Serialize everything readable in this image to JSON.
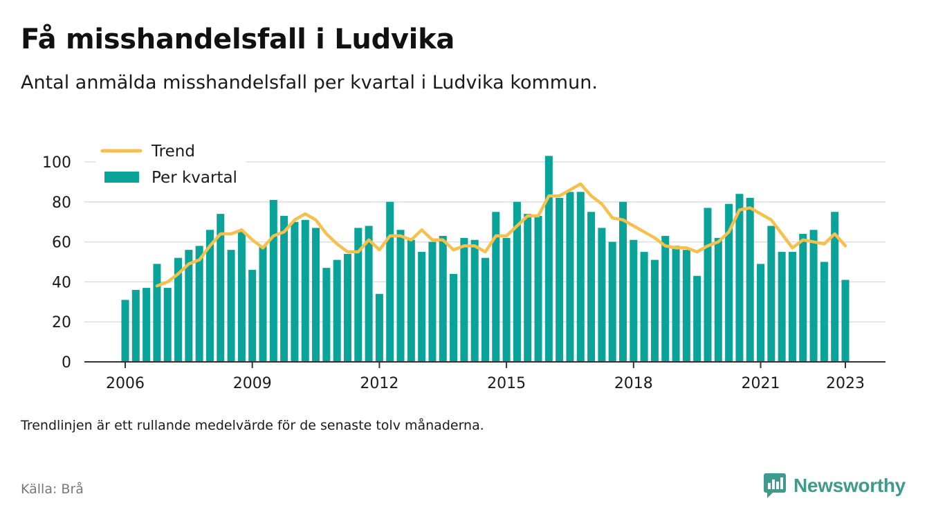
{
  "header": {
    "title": "Få misshandelsfall i Ludvika",
    "subtitle": "Antal anmälda misshandelsfall per kvartal i Ludvika kommun."
  },
  "footer": {
    "note": "Trendlinjen är ett rullande medelvärde för de senaste tolv månaderna.",
    "source": "Källa: Brå",
    "brand": "Newsworthy"
  },
  "colors": {
    "bar": "#0aa39a",
    "trend": "#f5c04b",
    "grid": "#dddddd",
    "axis": "#333333",
    "brand": "#3d9a8c"
  },
  "chart_data": {
    "type": "bar",
    "ylim": [
      0,
      100
    ],
    "yticks": [
      0,
      20,
      40,
      60,
      80,
      100
    ],
    "xticks": [
      "2006",
      "2009",
      "2012",
      "2015",
      "2018",
      "2021",
      "2023"
    ],
    "grid": true,
    "legend_placement": "top-left",
    "categories": [
      "2006 Q1",
      "2006 Q2",
      "2006 Q3",
      "2006 Q4",
      "2007 Q1",
      "2007 Q2",
      "2007 Q3",
      "2007 Q4",
      "2008 Q1",
      "2008 Q2",
      "2008 Q3",
      "2008 Q4",
      "2009 Q1",
      "2009 Q2",
      "2009 Q3",
      "2009 Q4",
      "2010 Q1",
      "2010 Q2",
      "2010 Q3",
      "2010 Q4",
      "2011 Q1",
      "2011 Q2",
      "2011 Q3",
      "2011 Q4",
      "2012 Q1",
      "2012 Q2",
      "2012 Q3",
      "2012 Q4",
      "2013 Q1",
      "2013 Q2",
      "2013 Q3",
      "2013 Q4",
      "2014 Q1",
      "2014 Q2",
      "2014 Q3",
      "2014 Q4",
      "2015 Q1",
      "2015 Q2",
      "2015 Q3",
      "2015 Q4",
      "2016 Q1",
      "2016 Q2",
      "2016 Q3",
      "2016 Q4",
      "2017 Q1",
      "2017 Q2",
      "2017 Q3",
      "2017 Q4",
      "2018 Q1",
      "2018 Q2",
      "2018 Q3",
      "2018 Q4",
      "2019 Q1",
      "2019 Q2",
      "2019 Q3",
      "2019 Q4",
      "2020 Q1",
      "2020 Q2",
      "2020 Q3",
      "2020 Q4",
      "2021 Q1",
      "2021 Q2",
      "2021 Q3",
      "2021 Q4",
      "2022 Q1",
      "2022 Q2",
      "2022 Q3",
      "2022 Q4",
      "2023 Q1"
    ],
    "series": [
      {
        "name": "Per kvartal",
        "type": "bar",
        "values": [
          31,
          36,
          37,
          49,
          37,
          52,
          56,
          58,
          66,
          74,
          56,
          65,
          46,
          58,
          81,
          73,
          70,
          71,
          67,
          47,
          51,
          54,
          67,
          68,
          34,
          80,
          66,
          61,
          55,
          60,
          63,
          44,
          62,
          61,
          52,
          75,
          62,
          80,
          74,
          73,
          103,
          82,
          85,
          85,
          75,
          67,
          60,
          80,
          61,
          55,
          51,
          63,
          58,
          56,
          43,
          77,
          62,
          79,
          84,
          82,
          49,
          68,
          55,
          55,
          64,
          66,
          50,
          75,
          41
        ]
      },
      {
        "name": "Trend",
        "type": "line",
        "values": [
          null,
          null,
          null,
          38,
          40,
          44,
          49,
          51,
          58,
          64,
          64,
          66,
          61,
          57,
          63,
          65,
          71,
          74,
          71,
          64,
          59,
          55,
          55,
          61,
          56,
          63,
          63,
          61,
          66,
          61,
          61,
          56,
          58,
          58,
          55,
          63,
          63,
          68,
          73,
          73,
          83,
          83,
          86,
          89,
          83,
          79,
          72,
          71,
          68,
          65,
          62,
          58,
          57,
          57,
          55,
          58,
          60,
          65,
          76,
          77,
          74,
          71,
          64,
          57,
          61,
          60,
          59,
          64,
          58
        ]
      }
    ]
  }
}
